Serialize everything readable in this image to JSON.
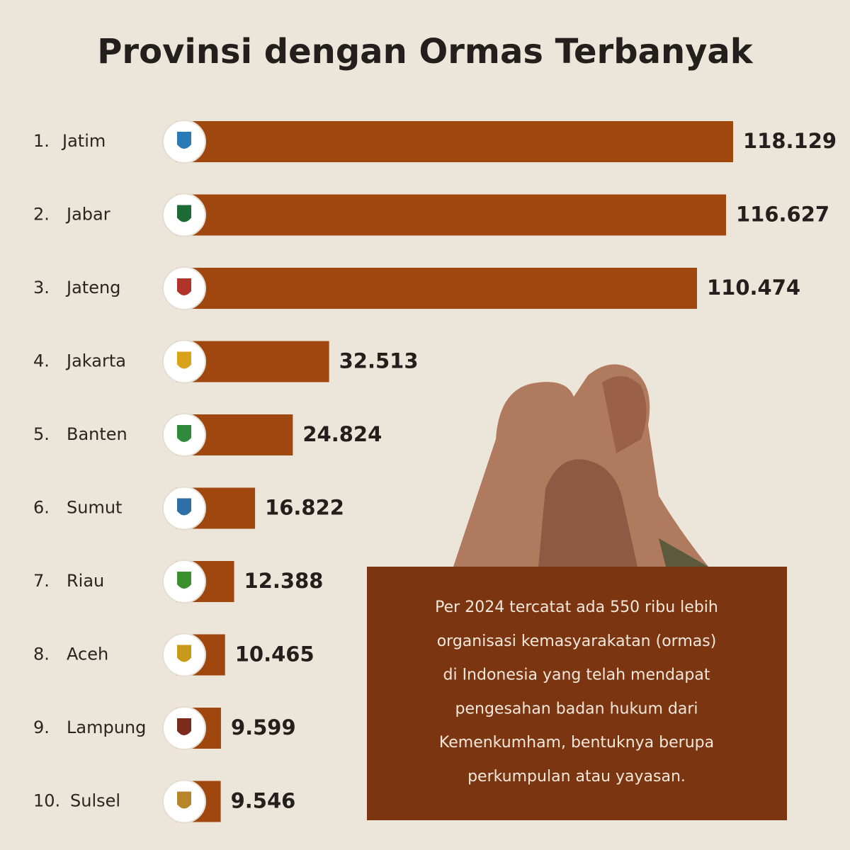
{
  "chart_data": {
    "type": "bar",
    "orientation": "horizontal",
    "title": "Provinsi dengan Ormas Terbanyak",
    "ranks": [
      "1.",
      "2.",
      "3.",
      "4.",
      "5.",
      "6.",
      "7.",
      "8.",
      "9.",
      "10."
    ],
    "categories": [
      "Jatim",
      "Jabar",
      "Jateng",
      "Jakarta",
      "Banten",
      "Sumut",
      "Riau",
      "Aceh",
      "Lampung",
      "Sulsel"
    ],
    "values": [
      118129,
      116627,
      110474,
      32513,
      24824,
      16822,
      12388,
      10465,
      9599,
      9546
    ],
    "value_labels": [
      "118.129",
      "116.627",
      "110.474",
      "32.513",
      "24.824",
      "16.822",
      "12.388",
      "10.465",
      "9.599",
      "9.546"
    ],
    "color": "#a0460f",
    "annotation": [
      "Per 2024 tercatat ada 550 ribu lebih",
      "organisasi kemasyarakatan (ormas)",
      "di Indonesia yang telah mendapat",
      "pengesahan badan hukum dari",
      "Kemenkumham, bentuknya berupa",
      "perkumpulan atau yayasan."
    ]
  }
}
